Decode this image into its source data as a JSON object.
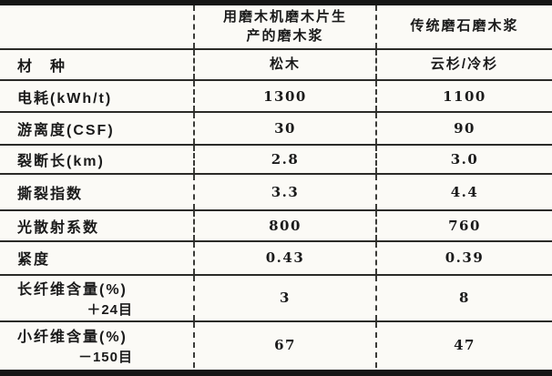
{
  "document": {
    "type": "scanned-table",
    "colors": {
      "ink": "#1a1a1a",
      "paper": "#fbfaf6"
    }
  },
  "table": {
    "header": {
      "col1": "",
      "col2": "用磨木机磨木片生\n产的磨木浆",
      "col3": "传统磨石磨木浆"
    },
    "rows": [
      {
        "label": "材　种",
        "col2": "松木",
        "col3": "云杉/冷杉"
      },
      {
        "label": "电耗(kWh/t)",
        "col2": "1300",
        "col3": "1100"
      },
      {
        "label": "游离度(CSF)",
        "col2": "30",
        "col3": "90"
      },
      {
        "label": "裂断长(km)",
        "col2": "2.8",
        "col3": "3.0"
      },
      {
        "label": "撕裂指数",
        "col2": "3.3",
        "col3": "4.4"
      },
      {
        "label": "光散射系数",
        "col2": "800",
        "col3": "760"
      },
      {
        "label": "紧度",
        "col2": "0.43",
        "col3": "0.39"
      },
      {
        "label": "长纤维含量(%)",
        "label2": "＋24目",
        "col2": "3",
        "col3": "8"
      },
      {
        "label": "小纤维含量(%)",
        "label2": "－150目",
        "col2": "67",
        "col3": "47"
      }
    ]
  }
}
